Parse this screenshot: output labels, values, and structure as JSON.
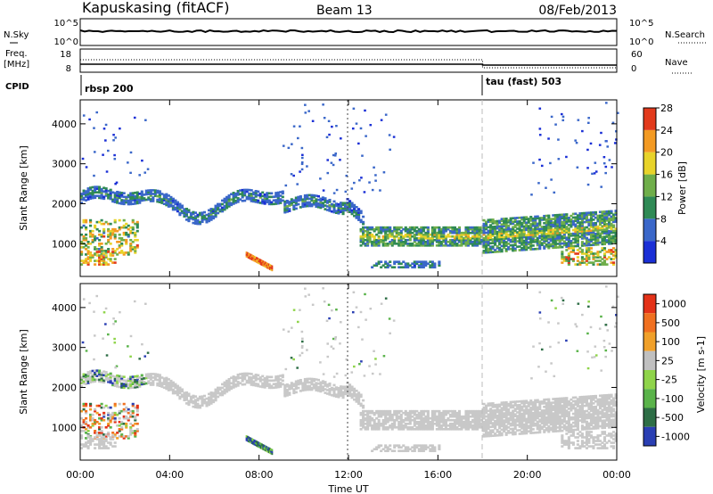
{
  "header": {
    "station": "Kapuskasing (fitACF)",
    "beam": "Beam 13",
    "date": "08/Feb/2013"
  },
  "panels": {
    "nsky": {
      "left_label": "N.Sky",
      "right_label": "N.Search",
      "tick_top": "10^5",
      "tick_bottom": "10^0"
    },
    "freq": {
      "left_label_1": "Freq.",
      "left_label_2": "[MHz]",
      "right_label": "Nave",
      "tick_left_top": "18",
      "tick_left_bottom": "8",
      "tick_right_top": "60",
      "tick_right_bottom": "0"
    },
    "cpid": {
      "label": "CPID",
      "modes": [
        {
          "name": "rbsp 200",
          "start_hour": 0
        },
        {
          "name": "tau (fast) 503",
          "start_hour": 18
        }
      ]
    }
  },
  "chart_data": [
    {
      "type": "heatmap",
      "name": "Power",
      "ylabel": "Slant Range [km]",
      "y_ticks": [
        1000,
        2000,
        3000,
        4000
      ],
      "ylim": [
        180,
        4600
      ],
      "xlim": [
        0,
        24
      ],
      "colorbar": {
        "label": "Power [dB]",
        "ticks": [
          "4",
          "8",
          "12",
          "16",
          "20",
          "24",
          "28"
        ],
        "range": [
          0,
          30
        ],
        "colors": [
          "#1a2fd6",
          "#3a67c9",
          "#2f8a55",
          "#6fae4a",
          "#e8d32a",
          "#f39a23",
          "#e23a1c"
        ]
      },
      "features": [
        {
          "desc": "band near 2000 km",
          "hours": [
            0,
            12.5
          ],
          "range_km": 2000
        },
        {
          "desc": "main band",
          "hours": [
            12.5,
            24
          ],
          "range_km": 1150,
          "power_db": 16
        },
        {
          "desc": "near range echo 08:00",
          "hours": [
            7.5,
            8.5
          ],
          "range_km": [
            300,
            700
          ],
          "power_db": 24
        }
      ]
    },
    {
      "type": "heatmap",
      "name": "Velocity",
      "ylabel": "Slant Range [km]",
      "xlabel": "Time UT",
      "x_ticks": [
        "00:00",
        "04:00",
        "08:00",
        "12:00",
        "16:00",
        "20:00",
        "00:00"
      ],
      "y_ticks": [
        1000,
        2000,
        3000,
        4000
      ],
      "ylim": [
        180,
        4600
      ],
      "xlim": [
        0,
        24
      ],
      "colorbar": {
        "label": "Velocity [m s-1]",
        "ticks": [
          "1000",
          "500",
          "100",
          "25",
          "-25",
          "-100",
          "-500",
          "-1000"
        ],
        "colors": [
          "#2a3fb3",
          "#2e6e46",
          "#5ab34a",
          "#8fd44a",
          "#c0c0c0",
          "#f0a02a",
          "#f07020",
          "#e43218"
        ]
      },
      "features": [
        {
          "desc": "ground scatter",
          "hours": [
            2,
            24
          ],
          "velocity": 0
        }
      ]
    }
  ]
}
